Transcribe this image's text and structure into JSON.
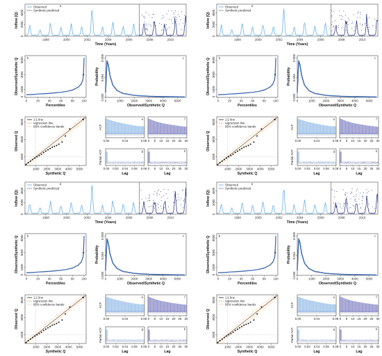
{
  "figure": {
    "colors": {
      "observed": "#55a7e3",
      "synthetic": "#1b2a7a",
      "line_11": "#222222",
      "regression": "#e6892b",
      "conf_band": "#f0b070",
      "acf_light": "#a9c9eb",
      "acf_dark": "#9a9ad0",
      "points": "#111111",
      "ref_lines": "#aaaaaa"
    },
    "labels": {
      "inflow_y": "Inflow (Q)",
      "time_x": "Time (Years)",
      "obs_syn_q": "Observed/Synthetic Q",
      "percentiles": "Percentiles",
      "probability": "Probability",
      "synthetic_q": "Synthetic Q",
      "observed_q": "Observed Q",
      "acf": "ACF",
      "pacf": "Partial ACF",
      "lag": "Lag"
    },
    "legends": {
      "timeseries": [
        "Observed",
        "Synthetic predicted"
      ],
      "qq": [
        "1:1 line",
        "regression line",
        "95% confidence bands"
      ]
    },
    "panel_letters": [
      "a",
      "b",
      "c",
      "d",
      "e",
      "f",
      "g",
      "h"
    ]
  },
  "chart_data": [
    {
      "type": "line",
      "panel": "a",
      "x": [
        1996,
        1997,
        1998,
        1999,
        2000,
        2001,
        2002,
        2003,
        2004,
        2005,
        2006,
        2007,
        2008,
        2009,
        2010,
        2011
      ],
      "series": [
        {
          "name": "Observed",
          "values": [
            2000,
            1200,
            2400,
            1600,
            2300,
            1800,
            5200,
            1700,
            2600,
            1900,
            2300,
            null,
            null,
            null,
            null,
            null
          ]
        },
        {
          "name": "Synthetic predicted",
          "values": [
            null,
            null,
            null,
            null,
            null,
            null,
            null,
            null,
            null,
            null,
            null,
            2300,
            3000,
            2400,
            3300,
            3600
          ]
        }
      ],
      "xlim": [
        1996,
        2011.5
      ],
      "ylim": [
        0,
        5500
      ],
      "xticks": [
        1998,
        2000,
        2002,
        2004,
        2006,
        2008,
        2010
      ],
      "yticks": [
        0,
        2000,
        4000
      ],
      "xlabel": "Time (Years)",
      "ylabel": "Inflow (Q)",
      "legend": "top-left"
    },
    {
      "type": "line",
      "panel": "b",
      "x": [
        0,
        10,
        20,
        30,
        40,
        50,
        60,
        70,
        80,
        90,
        95,
        98,
        99,
        100
      ],
      "series": [
        {
          "name": "",
          "values": [
            250,
            300,
            350,
            400,
            450,
            520,
            600,
            720,
            900,
            1300,
            1700,
            2300,
            3000,
            5200
          ]
        }
      ],
      "xlim": [
        0,
        100
      ],
      "ylim": [
        0,
        5500
      ],
      "xticks": [
        0,
        20,
        40,
        60,
        80,
        100
      ],
      "yticks": [
        0,
        1000,
        3000,
        5000
      ],
      "xlabel": "Percentiles",
      "ylabel": "Observed/Synthetic Q"
    },
    {
      "type": "line",
      "panel": "c",
      "x": [
        0,
        100,
        200,
        300,
        500,
        800,
        1200,
        2000,
        3000,
        4000,
        5000,
        5500
      ],
      "series": [
        {
          "name": "",
          "values": [
            0.001,
            0.0075,
            0.0065,
            0.0045,
            0.0025,
            0.0014,
            0.0008,
            0.0004,
            0.00022,
            0.00014,
            0.0001,
            8e-05
          ]
        }
      ],
      "xlim": [
        0,
        5600
      ],
      "ylim": [
        0,
        0.0085
      ],
      "xticks": [
        0,
        1000,
        2000,
        3000,
        4000,
        5000
      ],
      "yticks": [
        0.0,
        0.004,
        0.008
      ],
      "xlabel": "Observed/Synthetic Q",
      "ylabel": "Probability"
    },
    {
      "type": "scatter",
      "panel": "d",
      "x": [
        100,
        300,
        500,
        700,
        900,
        1100,
        1300,
        1500,
        1700,
        1900,
        2100,
        2300,
        2500,
        2700,
        2900,
        3100,
        3400,
        3700,
        4100,
        5300
      ],
      "values": [
        120,
        320,
        500,
        680,
        850,
        1000,
        1150,
        1300,
        1500,
        1650,
        1800,
        1950,
        2100,
        2200,
        2300,
        2450,
        2700,
        3400,
        4200,
        5300
      ],
      "xlim": [
        0,
        5600
      ],
      "ylim": [
        0,
        5600
      ],
      "xticks": [
        1000,
        2000,
        3000,
        4000,
        5000
      ],
      "yticks": [
        1000,
        3000,
        5000
      ],
      "xlabel": "Synthetic Q",
      "ylabel": "Observed Q",
      "legend": "top-left"
    },
    {
      "type": "bar",
      "panel": "e",
      "x": [
        0.0,
        0.01,
        0.02,
        0.03,
        0.04,
        0.05,
        0.06,
        0.07
      ],
      "values": [
        0.9,
        0.8,
        0.72,
        0.66,
        0.6,
        0.55,
        0.5,
        0.46
      ],
      "xlim": [
        0,
        0.08
      ],
      "ylim": [
        -0.2,
        1.0
      ],
      "xticks": [
        0.0,
        0.04,
        0.08
      ],
      "ylabel": "ACF"
    },
    {
      "type": "bar",
      "panel": "f",
      "x": [
        0,
        5,
        10,
        15,
        20,
        25,
        30
      ],
      "values": [
        0.9,
        0.75,
        0.65,
        0.58,
        0.52,
        0.47,
        0.43
      ],
      "xlim": [
        0,
        30
      ],
      "ylim": [
        -0.2,
        1.0
      ],
      "xticks": [
        0,
        5,
        10,
        15,
        20,
        25,
        30
      ]
    },
    {
      "type": "bar",
      "panel": "g",
      "x": [
        0.0,
        0.01,
        0.02,
        0.03,
        0.04,
        0.05,
        0.06,
        0.07
      ],
      "values": [
        0.8,
        0.1,
        0.05,
        0.04,
        0.02,
        0.03,
        0.01,
        0.02
      ],
      "xlim": [
        0,
        0.08
      ],
      "ylim": [
        -0.2,
        1.0
      ],
      "xticks": [
        0.0,
        0.02,
        0.04,
        0.06,
        0.08
      ],
      "xlabel": "Lag",
      "ylabel": "Partial ACF"
    },
    {
      "type": "bar",
      "panel": "h",
      "x": [
        0,
        5,
        10,
        15,
        20,
        25,
        30
      ],
      "values": [
        0.8,
        0.12,
        0.06,
        0.04,
        0.03,
        0.02,
        0.02
      ],
      "xlim": [
        0,
        30
      ],
      "ylim": [
        -0.2,
        1.0
      ],
      "xticks": [
        0,
        5,
        10,
        15,
        20,
        25,
        30
      ],
      "xlabel": "Lag"
    }
  ]
}
